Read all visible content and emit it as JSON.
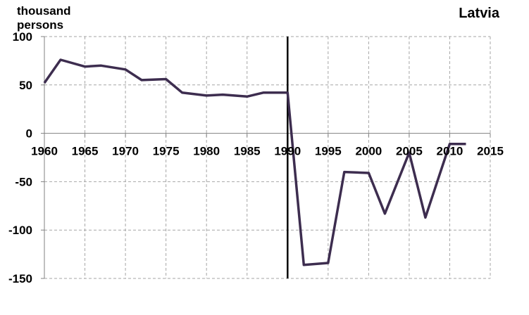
{
  "chart_data": {
    "type": "line",
    "title": "Latvia",
    "ylabel": "thousand persons",
    "xlabel": "",
    "xlim": [
      1960,
      2015
    ],
    "ylim": [
      -150,
      100
    ],
    "xticks": [
      1960,
      1965,
      1970,
      1975,
      1980,
      1985,
      1990,
      1995,
      2000,
      2005,
      2010,
      2015
    ],
    "yticks": [
      100,
      50,
      0,
      -50,
      -100,
      -150
    ],
    "grid": true,
    "vertical_marker_x": 1990,
    "series": [
      {
        "color": "#3d2d4f",
        "x": [
          1960,
          1962,
          1965,
          1967,
          1970,
          1972,
          1975,
          1977,
          1980,
          1982,
          1985,
          1987,
          1990,
          1992,
          1995,
          1997,
          2000,
          2002,
          2005,
          2007,
          2010,
          2012
        ],
        "y": [
          52,
          76,
          69,
          70,
          66,
          55,
          56,
          42,
          39,
          40,
          38,
          42,
          42,
          -136,
          -134,
          -40,
          -41,
          -83,
          -20,
          -87,
          -11,
          -11
        ]
      }
    ]
  }
}
